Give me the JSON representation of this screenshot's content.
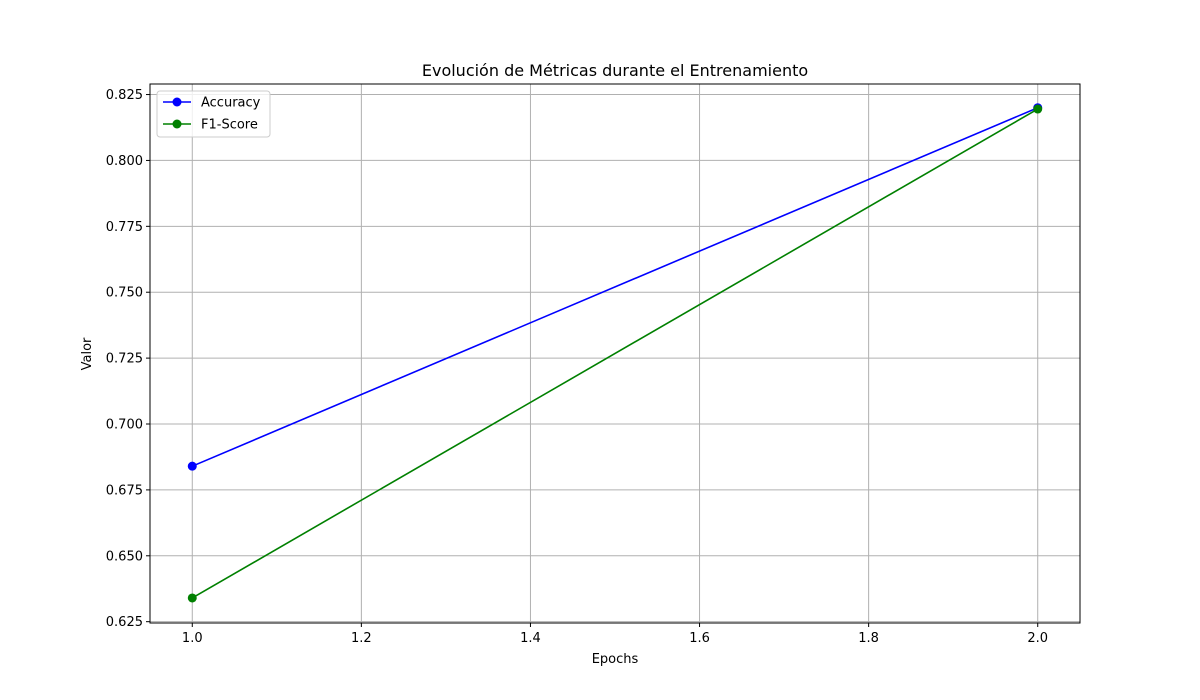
{
  "chart_data": {
    "type": "line",
    "title": "Evolución de Métricas durante el Entrenamiento",
    "xlabel": "Epochs",
    "ylabel": "Valor",
    "xlim": [
      0.95,
      2.05
    ],
    "ylim": [
      0.6245,
      0.829
    ],
    "xticks": [
      1.0,
      1.2,
      1.4,
      1.6,
      1.8,
      2.0
    ],
    "xtick_labels": [
      "1.0",
      "1.2",
      "1.4",
      "1.6",
      "1.8",
      "2.0"
    ],
    "yticks": [
      0.625,
      0.65,
      0.675,
      0.7,
      0.725,
      0.75,
      0.775,
      0.8,
      0.825
    ],
    "ytick_labels": [
      "0.625",
      "0.650",
      "0.675",
      "0.700",
      "0.725",
      "0.750",
      "0.775",
      "0.800",
      "0.825"
    ],
    "grid": true,
    "legend_position": "top-left",
    "series": [
      {
        "name": "Accuracy",
        "color": "#0000ff",
        "marker": "circle",
        "x": [
          1.0,
          2.0
        ],
        "y": [
          0.684,
          0.82
        ]
      },
      {
        "name": "F1-Score",
        "color": "#008000",
        "marker": "circle",
        "x": [
          1.0,
          2.0
        ],
        "y": [
          0.634,
          0.8195
        ]
      }
    ]
  }
}
